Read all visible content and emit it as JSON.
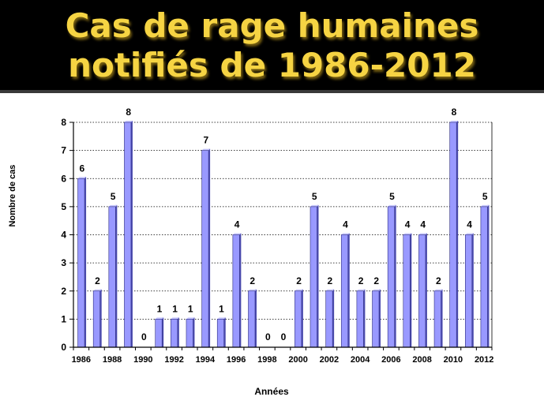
{
  "title_lines": [
    "Cas de rage humaines",
    "notifiés de 1986-2012"
  ],
  "colors": {
    "band": "#000000",
    "title": "#f6d443",
    "bar_fill": "#9999ff",
    "bar_side": "#4b4bb0",
    "bar_top": "#c8c8ff",
    "grid": "#000000"
  },
  "chart_data": {
    "type": "bar",
    "title": "Cas de rage humaines notifiés de 1986-2012",
    "xlabel": "Années",
    "ylabel": "Nombre de cas",
    "ylim": [
      0,
      8
    ],
    "yticks": [
      0,
      1,
      2,
      3,
      4,
      5,
      6,
      7,
      8
    ],
    "grid": "horizontal dotted",
    "categories": [
      1986,
      1987,
      1988,
      1989,
      1990,
      1991,
      1992,
      1993,
      1994,
      1995,
      1996,
      1997,
      1998,
      1999,
      2000,
      2001,
      2002,
      2003,
      2004,
      2005,
      2006,
      2007,
      2008,
      2009,
      2010,
      2011,
      2012
    ],
    "xtick_labels": [
      "1986",
      "1988",
      "1990",
      "1992",
      "1994",
      "1996",
      "1998",
      "2000",
      "2002",
      "2004",
      "2006",
      "2008",
      "2010",
      "2012"
    ],
    "values": [
      6,
      2,
      5,
      8,
      0,
      1,
      1,
      1,
      7,
      1,
      4,
      2,
      0,
      0,
      2,
      5,
      2,
      4,
      2,
      2,
      5,
      4,
      4,
      2,
      8,
      4,
      5
    ]
  }
}
